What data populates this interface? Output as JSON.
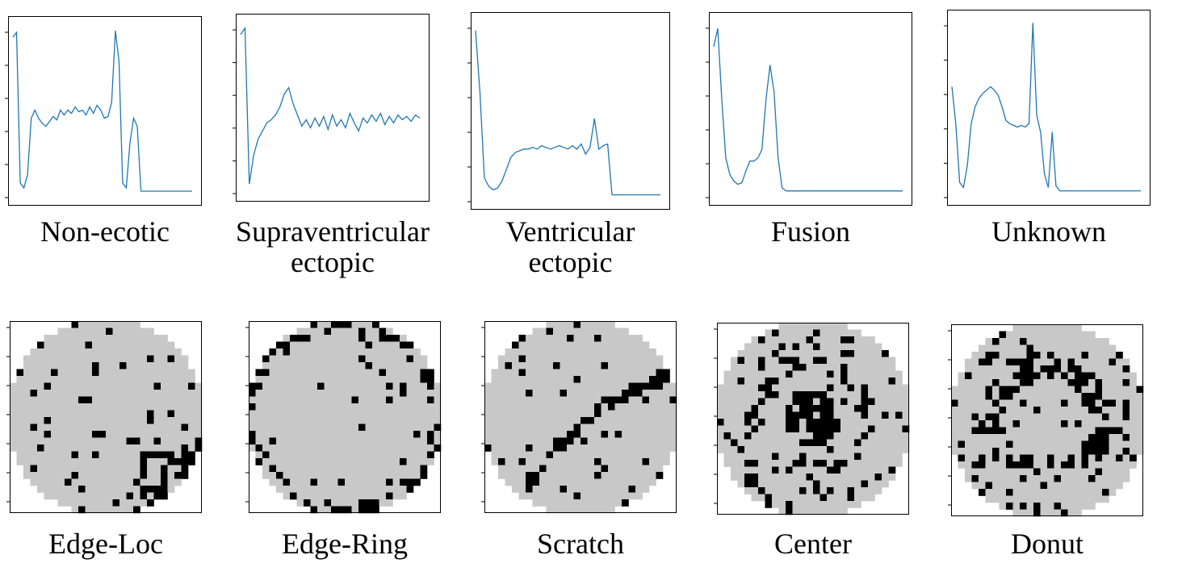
{
  "chart_data": [
    {
      "type": "line",
      "title": "Non-ecotic",
      "color": "#1f77b4",
      "ylim": [
        -0.05,
        1.05
      ],
      "values": [
        0.95,
        0.98,
        0.05,
        0.02,
        0.1,
        0.45,
        0.5,
        0.45,
        0.42,
        0.4,
        0.43,
        0.46,
        0.44,
        0.5,
        0.47,
        0.5,
        0.48,
        0.52,
        0.49,
        0.5,
        0.47,
        0.52,
        0.48,
        0.53,
        0.5,
        0.45,
        0.46,
        0.55,
        0.99,
        0.8,
        0.05,
        0.02,
        0.3,
        0.45,
        0.4,
        0,
        0,
        0,
        0,
        0,
        0,
        0,
        0,
        0,
        0,
        0,
        0,
        0,
        0,
        0
      ]
    },
    {
      "type": "line",
      "title": "Supraventricular ectopic",
      "color": "#1f77b4",
      "ylim": [
        -0.05,
        1.05
      ],
      "values": [
        0.95,
        0.99,
        0.02,
        0.2,
        0.3,
        0.35,
        0.4,
        0.42,
        0.45,
        0.5,
        0.58,
        0.62,
        0.52,
        0.45,
        0.38,
        0.42,
        0.37,
        0.43,
        0.38,
        0.44,
        0.36,
        0.45,
        0.38,
        0.42,
        0.37,
        0.46,
        0.4,
        0.35,
        0.43,
        0.4,
        0.45,
        0.41,
        0.46,
        0.39,
        0.44,
        0.4,
        0.45,
        0.42,
        0.44,
        0.41,
        0.45,
        0.43
      ]
    },
    {
      "type": "line",
      "title": "Ventricular ectopic",
      "color": "#1f77b4",
      "ylim": [
        -0.05,
        1.05
      ],
      "values": [
        0.97,
        0.6,
        0.1,
        0.05,
        0.03,
        0.04,
        0.08,
        0.15,
        0.22,
        0.25,
        0.26,
        0.27,
        0.27,
        0.28,
        0.27,
        0.29,
        0.28,
        0.27,
        0.28,
        0.29,
        0.28,
        0.27,
        0.29,
        0.27,
        0.3,
        0.24,
        0.28,
        0.45,
        0.27,
        0.29,
        0.3,
        0,
        0,
        0,
        0,
        0,
        0,
        0,
        0,
        0,
        0,
        0,
        0
      ]
    },
    {
      "type": "line",
      "title": "Fusion",
      "color": "#1f77b4",
      "ylim": [
        -0.05,
        1.05
      ],
      "values": [
        0.87,
        0.98,
        0.55,
        0.2,
        0.1,
        0.06,
        0.04,
        0.05,
        0.12,
        0.18,
        0.18,
        0.2,
        0.25,
        0.55,
        0.76,
        0.6,
        0.2,
        0.02,
        0,
        0,
        0,
        0,
        0,
        0,
        0,
        0,
        0,
        0,
        0,
        0,
        0,
        0,
        0,
        0,
        0,
        0,
        0,
        0,
        0,
        0,
        0,
        0,
        0,
        0,
        0,
        0,
        0,
        0
      ]
    },
    {
      "type": "line",
      "title": "Unknown",
      "color": "#1f77b4",
      "ylim": [
        -0.05,
        1.05
      ],
      "values": [
        0.62,
        0.4,
        0.05,
        0.02,
        0.15,
        0.4,
        0.5,
        0.55,
        0.58,
        0.6,
        0.62,
        0.6,
        0.57,
        0.5,
        0.42,
        0.4,
        0.39,
        0.38,
        0.39,
        0.38,
        0.4,
        1.0,
        0.45,
        0.35,
        0.1,
        0.02,
        0.35,
        0.03,
        0,
        0,
        0,
        0,
        0,
        0,
        0,
        0,
        0,
        0,
        0,
        0,
        0,
        0,
        0,
        0,
        0,
        0,
        0,
        0,
        0,
        0
      ]
    }
  ],
  "wafer_maps": [
    {
      "label": "Edge-Loc"
    },
    {
      "label": "Edge-Ring"
    },
    {
      "label": "Scratch"
    },
    {
      "label": "Center"
    },
    {
      "label": "Donut"
    }
  ]
}
